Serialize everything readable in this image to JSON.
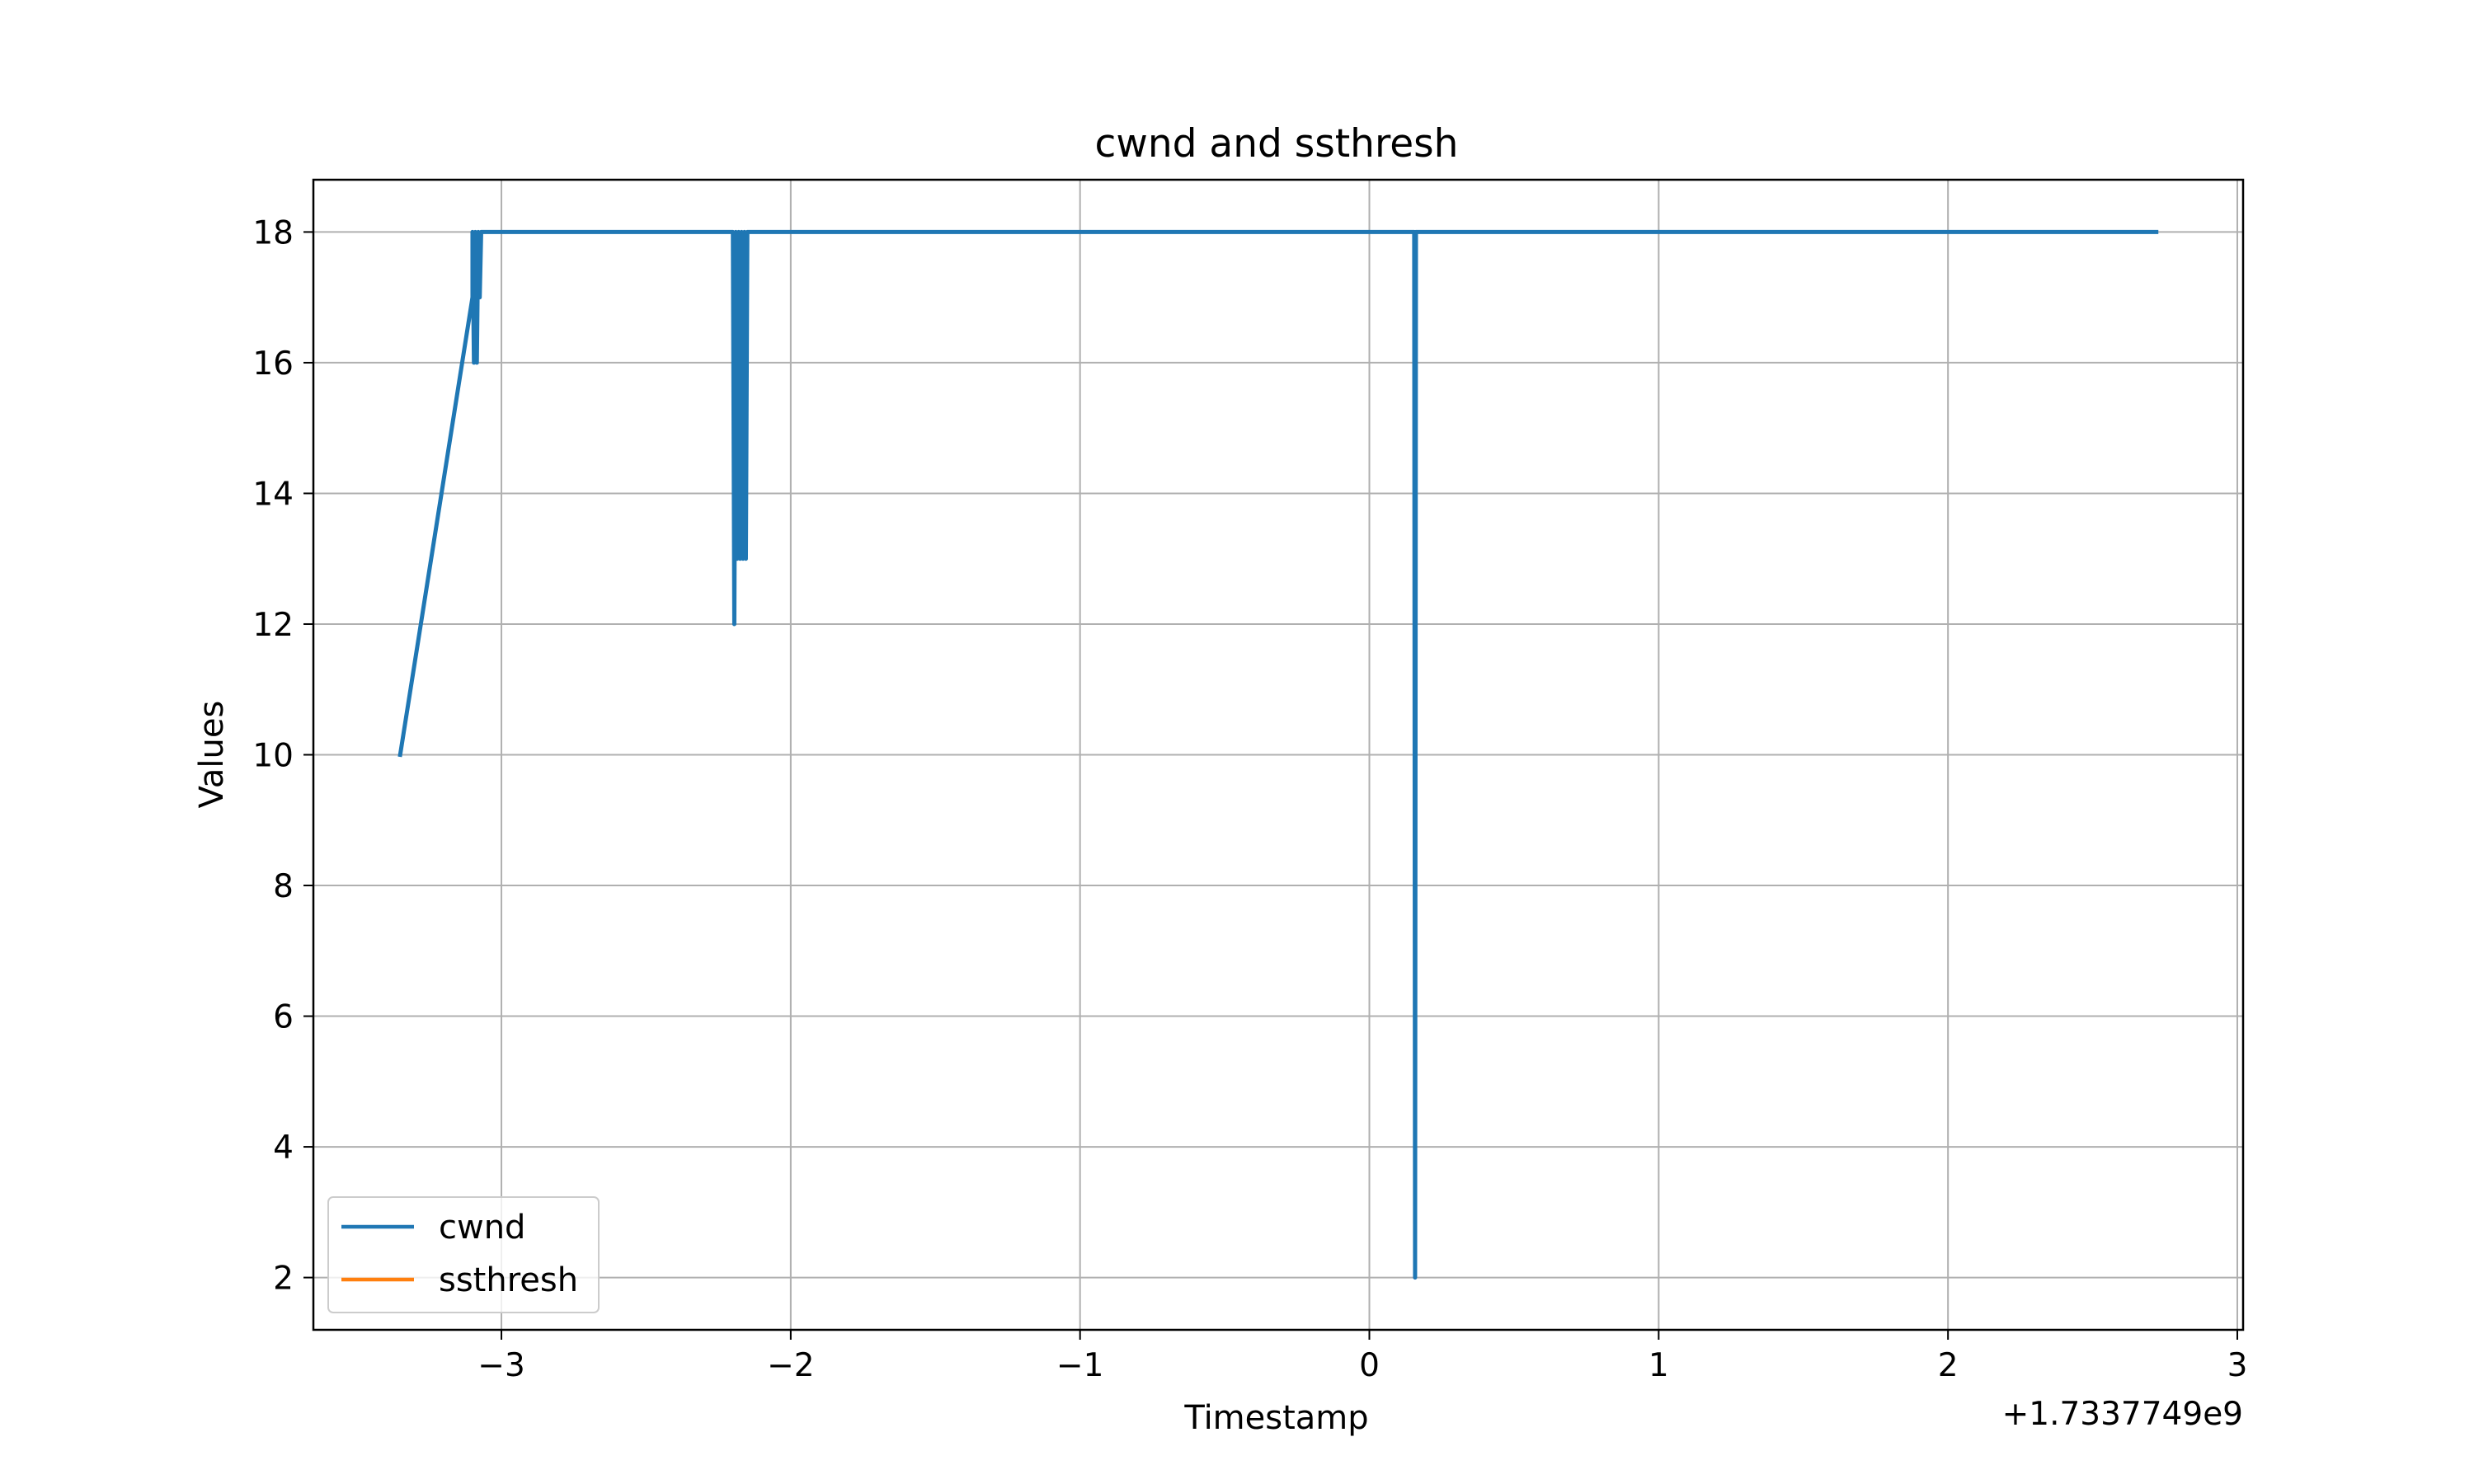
{
  "chart_data": {
    "type": "line",
    "title": "cwnd and ssthresh",
    "xlabel": "Timestamp",
    "ylabel": "Values",
    "x_offset_label": "+1.7337749e9",
    "xlim": [
      -3.65,
      3.02
    ],
    "ylim": [
      1.2,
      18.8
    ],
    "xticks": [
      -3,
      -2,
      -1,
      0,
      1,
      2,
      3
    ],
    "xtick_labels": [
      "−3",
      "−2",
      "−1",
      "0",
      "1",
      "2",
      "3"
    ],
    "yticks": [
      2,
      4,
      6,
      8,
      10,
      12,
      14,
      16,
      18
    ],
    "ytick_labels": [
      "2",
      "4",
      "6",
      "8",
      "10",
      "12",
      "14",
      "16",
      "18"
    ],
    "grid": true,
    "legend_position": "lower-left",
    "series": [
      {
        "name": "cwnd",
        "color": "#1f77b4",
        "points": [
          [
            -3.35,
            10
          ],
          [
            -3.1,
            17
          ],
          [
            -3.1,
            18
          ],
          [
            -3.095,
            16
          ],
          [
            -3.09,
            18
          ],
          [
            -3.085,
            16
          ],
          [
            -3.08,
            18
          ],
          [
            -3.075,
            17
          ],
          [
            -3.07,
            18
          ],
          [
            -3.06,
            18
          ],
          [
            -2.2,
            18
          ],
          [
            -2.195,
            12
          ],
          [
            -2.19,
            18
          ],
          [
            -2.185,
            13
          ],
          [
            -2.18,
            18
          ],
          [
            -2.175,
            13
          ],
          [
            -2.17,
            18
          ],
          [
            -2.165,
            13
          ],
          [
            -2.16,
            18
          ],
          [
            -2.155,
            13
          ],
          [
            -2.15,
            18
          ],
          [
            0.155,
            18
          ],
          [
            0.158,
            2
          ],
          [
            0.161,
            18
          ],
          [
            2.72,
            18
          ]
        ]
      },
      {
        "name": "ssthresh",
        "color": "#ff7f0e",
        "points": []
      }
    ]
  }
}
